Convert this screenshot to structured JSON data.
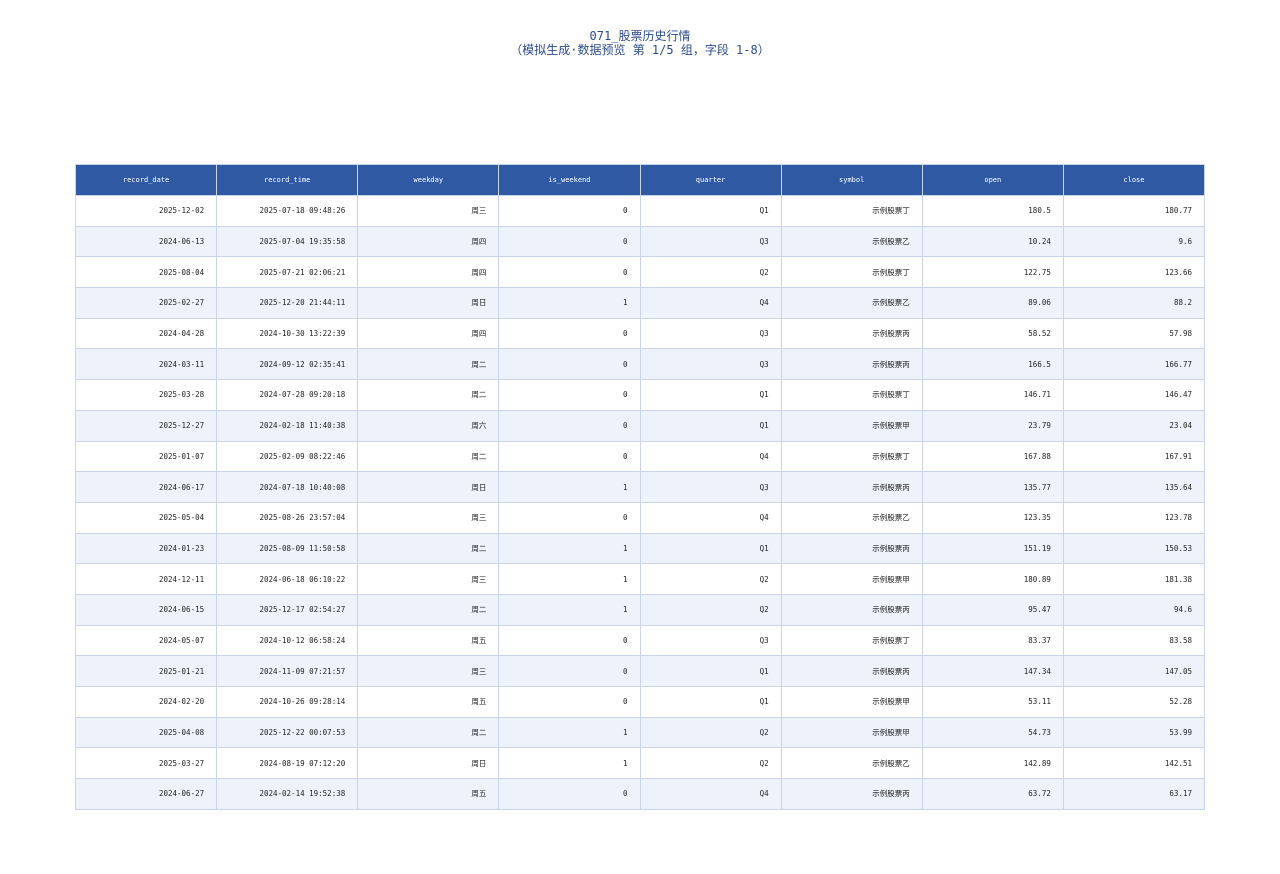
{
  "header": {
    "title": "071_股票历史行情",
    "subtitle": "（模拟生成·数据预览 第 1/5 组，字段 1-8）"
  },
  "table": {
    "columns": [
      "record_date",
      "record_time",
      "weekday",
      "is_weekend",
      "quarter",
      "symbol",
      "open",
      "close"
    ],
    "rows": [
      [
        "2025-12-02",
        "2025-07-18 09:48:26",
        "周三",
        "0",
        "Q1",
        "示例股票丁",
        "180.5",
        "180.77"
      ],
      [
        "2024-06-13",
        "2025-07-04 19:35:58",
        "周四",
        "0",
        "Q3",
        "示例股票乙",
        "10.24",
        "9.6"
      ],
      [
        "2025-08-04",
        "2025-07-21 02:06:21",
        "周四",
        "0",
        "Q2",
        "示例股票丁",
        "122.75",
        "123.66"
      ],
      [
        "2025-02-27",
        "2025-12-20 21:44:11",
        "周日",
        "1",
        "Q4",
        "示例股票乙",
        "89.06",
        "88.2"
      ],
      [
        "2024-04-28",
        "2024-10-30 13:22:39",
        "周四",
        "0",
        "Q3",
        "示例股票丙",
        "58.52",
        "57.98"
      ],
      [
        "2024-03-11",
        "2024-09-12 02:35:41",
        "周二",
        "0",
        "Q3",
        "示例股票丙",
        "166.5",
        "166.77"
      ],
      [
        "2025-03-28",
        "2024-07-28 09:20:18",
        "周二",
        "0",
        "Q1",
        "示例股票丁",
        "146.71",
        "146.47"
      ],
      [
        "2025-12-27",
        "2024-02-18 11:40:38",
        "周六",
        "0",
        "Q1",
        "示例股票甲",
        "23.79",
        "23.04"
      ],
      [
        "2025-01-07",
        "2025-02-09 08:22:46",
        "周二",
        "0",
        "Q4",
        "示例股票丁",
        "167.88",
        "167.91"
      ],
      [
        "2024-06-17",
        "2024-07-18 10:40:08",
        "周日",
        "1",
        "Q3",
        "示例股票丙",
        "135.77",
        "135.64"
      ],
      [
        "2025-05-04",
        "2025-08-26 23:57:04",
        "周三",
        "0",
        "Q4",
        "示例股票乙",
        "123.35",
        "123.78"
      ],
      [
        "2024-01-23",
        "2025-08-09 11:50:58",
        "周二",
        "1",
        "Q1",
        "示例股票丙",
        "151.19",
        "150.53"
      ],
      [
        "2024-12-11",
        "2024-06-18 06:10:22",
        "周三",
        "1",
        "Q2",
        "示例股票甲",
        "180.89",
        "181.38"
      ],
      [
        "2024-06-15",
        "2025-12-17 02:54:27",
        "周二",
        "1",
        "Q2",
        "示例股票丙",
        "95.47",
        "94.6"
      ],
      [
        "2024-05-07",
        "2024-10-12 06:58:24",
        "周五",
        "0",
        "Q3",
        "示例股票丁",
        "83.37",
        "83.58"
      ],
      [
        "2025-01-21",
        "2024-11-09 07:21:57",
        "周三",
        "0",
        "Q1",
        "示例股票丙",
        "147.34",
        "147.05"
      ],
      [
        "2024-02-20",
        "2024-10-26 09:28:14",
        "周五",
        "0",
        "Q1",
        "示例股票甲",
        "53.11",
        "52.28"
      ],
      [
        "2025-04-08",
        "2025-12-22 00:07:53",
        "周二",
        "1",
        "Q2",
        "示例股票甲",
        "54.73",
        "53.99"
      ],
      [
        "2025-03-27",
        "2024-08-19 07:12:20",
        "周日",
        "1",
        "Q2",
        "示例股票乙",
        "142.89",
        "142.51"
      ],
      [
        "2024-06-27",
        "2024-02-14 19:52:38",
        "周五",
        "0",
        "Q4",
        "示例股票丙",
        "63.72",
        "63.17"
      ]
    ]
  }
}
